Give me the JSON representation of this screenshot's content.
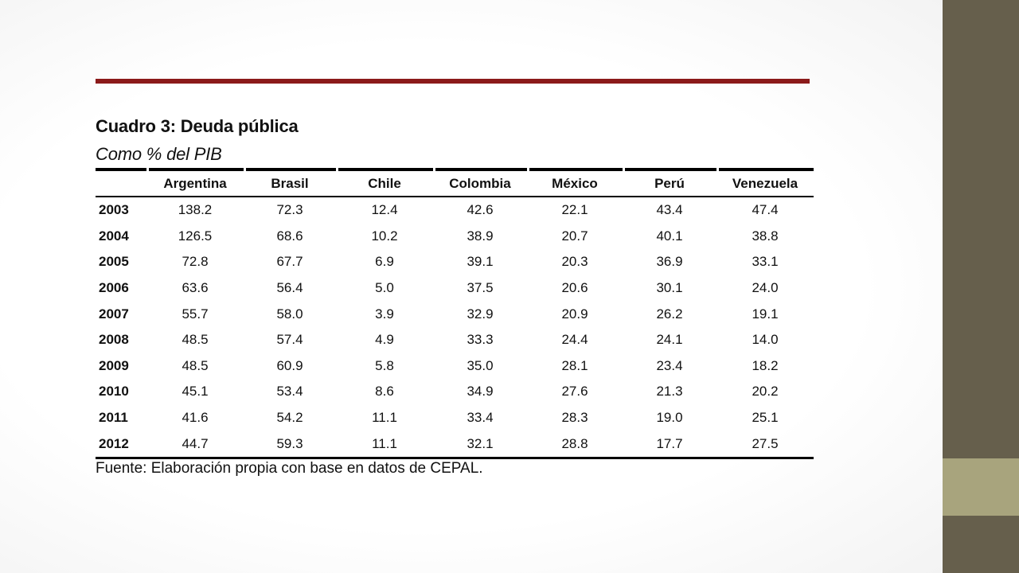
{
  "slide": {
    "title": "Cuadro 3: Deuda pública",
    "subtitle": "Como % del PIB",
    "source": "Fuente: Elaboración propia con base en datos de CEPAL.",
    "colors": {
      "rule": "#8b1a1a",
      "sidebar": "#665f4c",
      "sidebar_accent": "#a8a47d"
    }
  },
  "table": {
    "columns": [
      "",
      "Argentina",
      "Brasil",
      "Chile",
      "Colombia",
      "México",
      "Perú",
      "Venezuela"
    ],
    "rows": [
      [
        "2003",
        "138.2",
        "72.3",
        "12.4",
        "42.6",
        "22.1",
        "43.4",
        "47.4"
      ],
      [
        "2004",
        "126.5",
        "68.6",
        "10.2",
        "38.9",
        "20.7",
        "40.1",
        "38.8"
      ],
      [
        "2005",
        "72.8",
        "67.7",
        "6.9",
        "39.1",
        "20.3",
        "36.9",
        "33.1"
      ],
      [
        "2006",
        "63.6",
        "56.4",
        "5.0",
        "37.5",
        "20.6",
        "30.1",
        "24.0"
      ],
      [
        "2007",
        "55.7",
        "58.0",
        "3.9",
        "32.9",
        "20.9",
        "26.2",
        "19.1"
      ],
      [
        "2008",
        "48.5",
        "57.4",
        "4.9",
        "33.3",
        "24.4",
        "24.1",
        "14.0"
      ],
      [
        "2009",
        "48.5",
        "60.9",
        "5.8",
        "35.0",
        "28.1",
        "23.4",
        "18.2"
      ],
      [
        "2010",
        "45.1",
        "53.4",
        "8.6",
        "34.9",
        "27.6",
        "21.3",
        "20.2"
      ],
      [
        "2011",
        "41.6",
        "54.2",
        "11.1",
        "33.4",
        "28.3",
        "19.0",
        "25.1"
      ],
      [
        "2012",
        "44.7",
        "59.3",
        "11.1",
        "32.1",
        "28.8",
        "17.7",
        "27.5"
      ]
    ]
  }
}
